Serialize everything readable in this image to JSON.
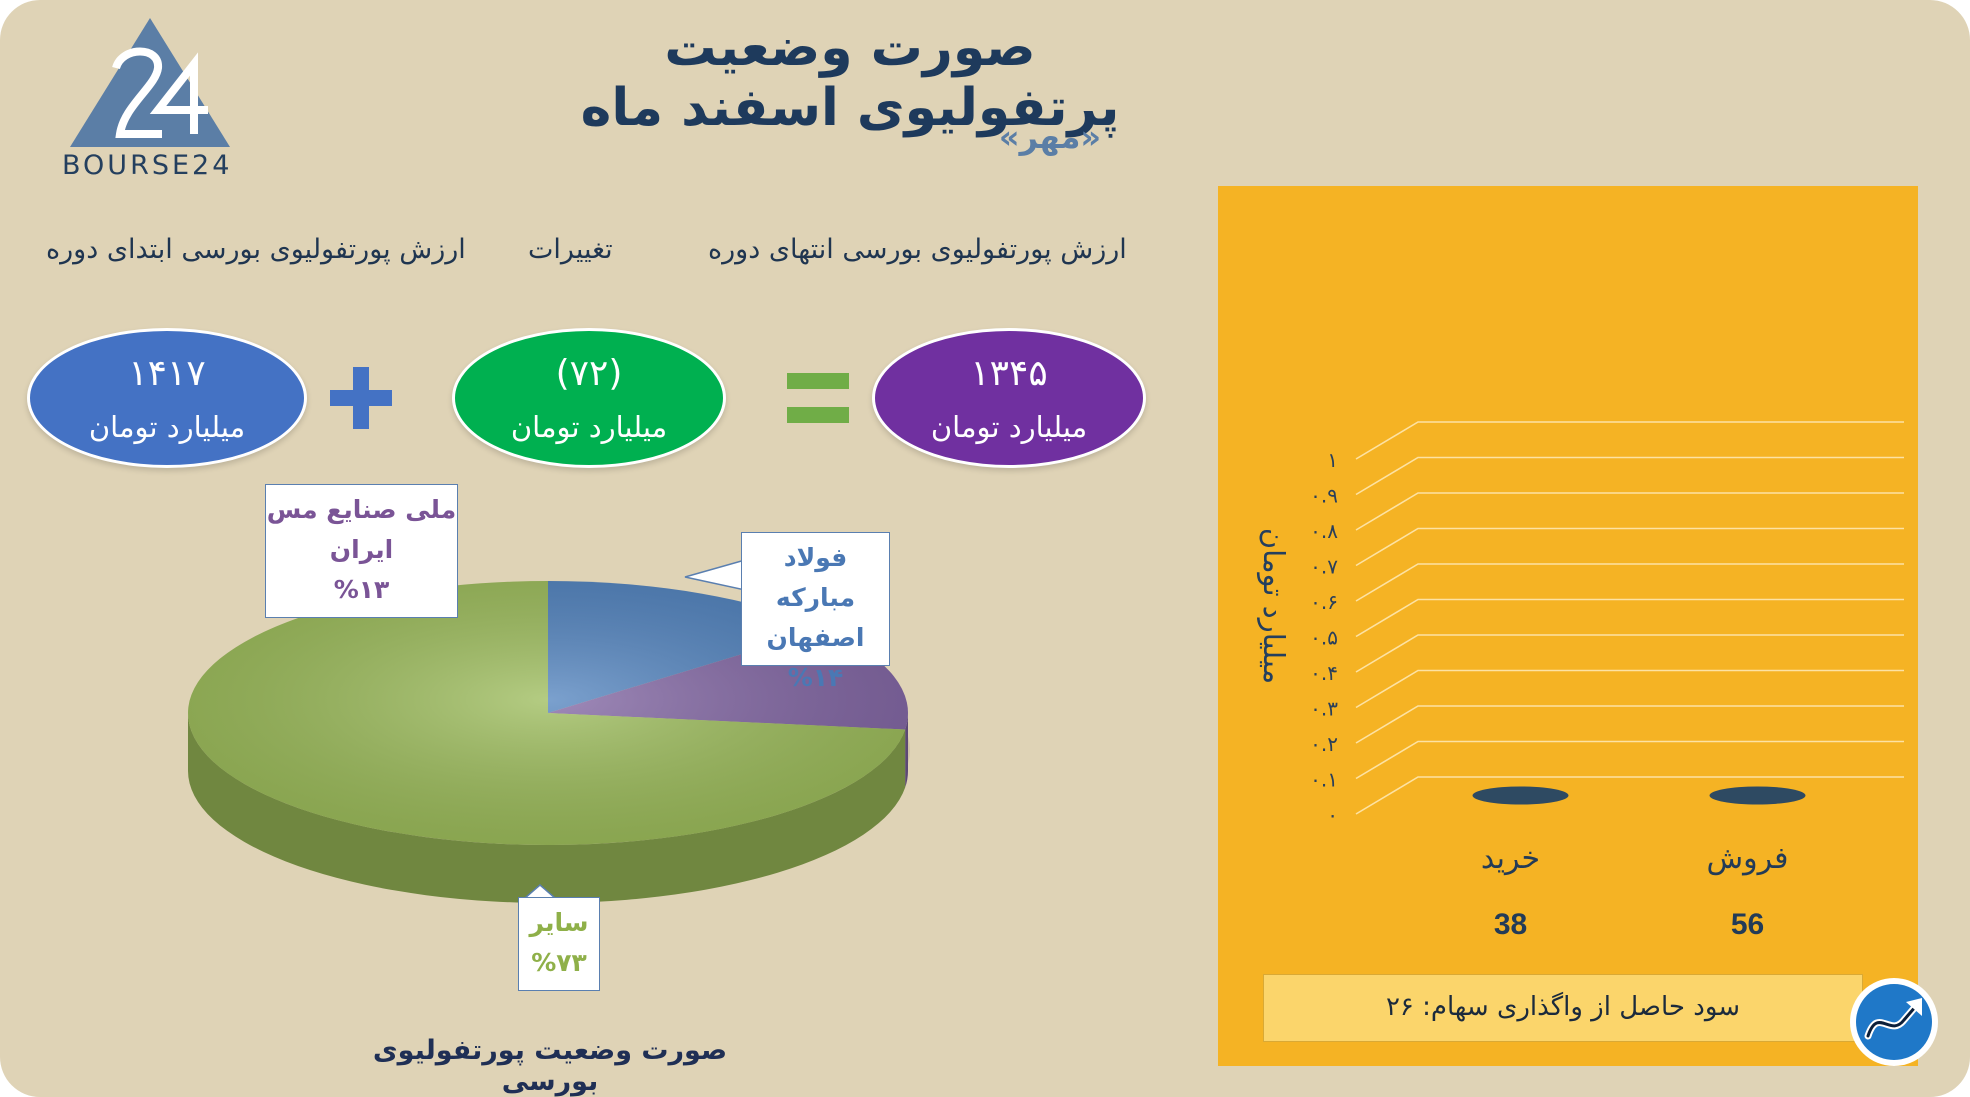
{
  "header": {
    "title": "صورت وضعیت پرتفولیوی اسفند ماه",
    "subtitle": "«مهر»",
    "logo_text": "BOURSE24"
  },
  "equation": {
    "start_label": "ارزش پورتفولیوی بورسی ابتدای دوره",
    "change_label": "تغییرات",
    "end_label": "ارزش پورتفولیوی بورسی انتهای دوره",
    "start_value": "۱۴۱۷",
    "change_value": "(۷۲)",
    "end_value": "۱۳۴۵",
    "unit": "میلیارد تومان",
    "colors": {
      "start": "#4472c4",
      "change": "#00b050",
      "end": "#7030a0",
      "plus": "#4472c4",
      "equals": "#70ad47"
    }
  },
  "pie_callouts": {
    "copper": {
      "line1": "ملی صنایع مس",
      "line2": "ایران",
      "pct": "%۱۳"
    },
    "foolad": {
      "line1": "فولاد مبارکه",
      "line2": "اصفهان",
      "pct": "%۱۴"
    },
    "other": {
      "line1": "سایر",
      "pct": "%۷۳"
    }
  },
  "pie_title": "صورت وضعیت پورتفولیوی بورسی",
  "profit_text": "سود حاصل از واگذاری سهام: ۲۶",
  "chart_data": [
    {
      "type": "pie",
      "title": "صورت وضعیت پورتفولیوی بورسی",
      "slices": [
        {
          "label": "فولاد مبارکه اصفهان",
          "value": 14,
          "color": "#4f81bd"
        },
        {
          "label": "ملی صنایع مس ایران",
          "value": 13,
          "color": "#8064a2"
        },
        {
          "label": "سایر",
          "value": 73,
          "color": "#9bbb59"
        }
      ]
    },
    {
      "type": "bar",
      "ylabel": "میلیارد تومان",
      "ylim": [
        0,
        1
      ],
      "yticks": [
        "۰",
        "۰.۱",
        "۰.۲",
        "۰.۳",
        "۰.۴",
        "۰.۵",
        "۰.۶",
        "۰.۷",
        "۰.۸",
        "۰.۹",
        "۱"
      ],
      "categories": [
        "خرید",
        "فروش"
      ],
      "values": [
        0,
        0
      ],
      "count_labels": [
        "38",
        "56"
      ],
      "bar_color": "#2e4a62",
      "grid": true
    }
  ]
}
